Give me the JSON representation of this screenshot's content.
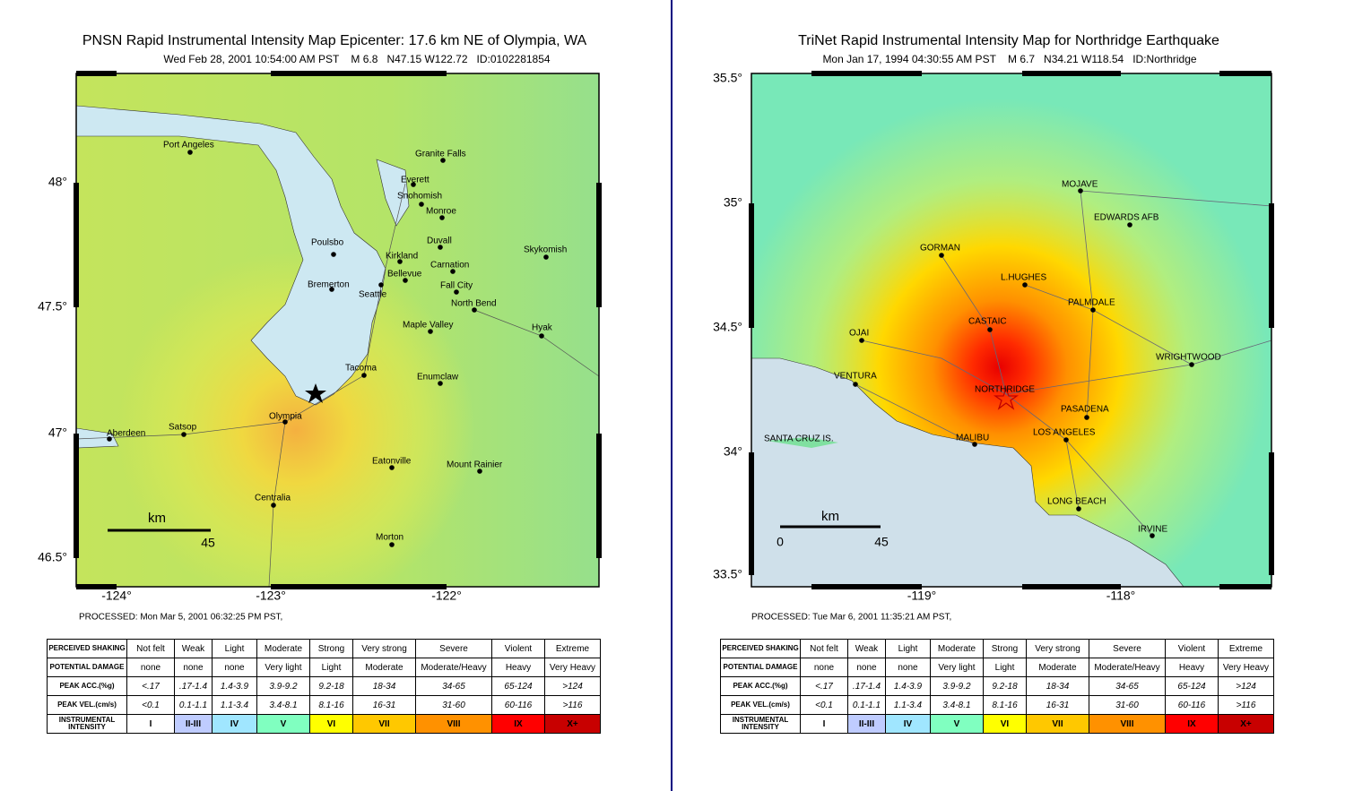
{
  "panels": [
    {
      "title": "PNSN Rapid Instrumental Intensity Map Epicenter: 17.6 km NE of Olympia, WA",
      "subtitle": "Wed Feb 28, 2001 10:54:00 AM PST    M 6.8   N47.15 W122.72   ID:0102281854",
      "lat_labels": [
        "48°",
        "47.5°",
        "47°",
        "46.5°"
      ],
      "lon_labels": [
        "-124°",
        "-123°",
        "-122°"
      ],
      "cities": [
        "Port Angeles",
        "Granite Falls",
        "Everett",
        "Snohomish",
        "Monroe",
        "Duvall",
        "Skykomish",
        "Poulsbo",
        "Kirkland",
        "Bellevue",
        "Carnation",
        "Bremerton",
        "Seattle",
        "Fall City",
        "North Bend",
        "Maple Valley",
        "Hyak",
        "Tacoma",
        "Enumclaw",
        "Olympia",
        "Satsop",
        "Aberdeen",
        "Eatonville",
        "Mount Rainier",
        "Centralia",
        "Morton"
      ],
      "scale": {
        "unit": "km",
        "labels": [
          "45"
        ]
      },
      "processed": "PROCESSED: Mon Mar 5, 2001 06:32:25 PM PST,"
    },
    {
      "title": "TriNet Rapid Instrumental Intensity Map for Northridge Earthquake",
      "subtitle": "Mon Jan 17, 1994 04:30:55 AM PST    M 6.7   N34.21 W118.54   ID:Northridge",
      "lat_labels": [
        "35.5°",
        "35°",
        "34.5°",
        "34°",
        "33.5°"
      ],
      "lon_labels": [
        "-119°",
        "-118°"
      ],
      "cities": [
        "MOJAVE",
        "EDWARDS AFB",
        "GORMAN",
        "L.HUGHES",
        "PALMDALE",
        "CASTAIC",
        "OJAI",
        "WRIGHTWOOD",
        "VENTURA",
        "NORTHRIDGE",
        "PASADENA",
        "SANTA CRUZ IS.",
        "LOS ANGELES",
        "MALIBU",
        "LONG BEACH",
        "IRVINE"
      ],
      "scale": {
        "unit": "km",
        "labels": [
          "0",
          "45"
        ]
      },
      "processed": "PROCESSED: Tue Mar 6, 2001 11:35:21 AM PST,"
    }
  ],
  "legend": {
    "rows": [
      {
        "header": "PERCEIVED SHAKING",
        "cells": [
          "Not felt",
          "Weak",
          "Light",
          "Moderate",
          "Strong",
          "Very strong",
          "Severe",
          "Violent",
          "Extreme"
        ]
      },
      {
        "header": "POTENTIAL DAMAGE",
        "cells": [
          "none",
          "none",
          "none",
          "Very light",
          "Light",
          "Moderate",
          "Moderate/Heavy",
          "Heavy",
          "Very Heavy"
        ]
      },
      {
        "header": "PEAK ACC.(%g)",
        "cells": [
          "<.17",
          ".17-1.4",
          "1.4-3.9",
          "3.9-9.2",
          "9.2-18",
          "18-34",
          "34-65",
          "65-124",
          ">124"
        ]
      },
      {
        "header": "PEAK VEL.(cm/s)",
        "cells": [
          "<0.1",
          "0.1-1.1",
          "1.1-3.4",
          "3.4-8.1",
          "8.1-16",
          "16-31",
          "31-60",
          "60-116",
          ">116"
        ]
      },
      {
        "header": "INSTRUMENTAL INTENSITY",
        "cells": [
          "I",
          "II-III",
          "IV",
          "V",
          "VI",
          "VII",
          "VIII",
          "IX",
          "X+"
        ]
      }
    ]
  }
}
